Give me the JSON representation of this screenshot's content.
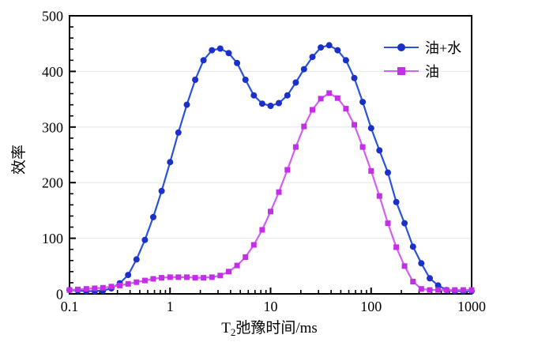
{
  "chart_data": {
    "type": "line",
    "xscale": "log",
    "xlabel": {
      "prefix": "T",
      "sub": "2",
      "rest": "弛豫时间/ms"
    },
    "ylabel": "效率",
    "xlim": [
      0.1,
      1000
    ],
    "ylim": [
      0,
      500
    ],
    "x_ticks": [
      {
        "value": 0.1,
        "label": "0.1"
      },
      {
        "value": 1,
        "label": "1"
      },
      {
        "value": 10,
        "label": "10"
      },
      {
        "value": 100,
        "label": "100"
      },
      {
        "value": 1000,
        "label": "1000"
      }
    ],
    "y_ticks": [
      {
        "value": 0,
        "label": "0"
      },
      {
        "value": 100,
        "label": "100"
      },
      {
        "value": 200,
        "label": "200"
      },
      {
        "value": 300,
        "label": "300"
      },
      {
        "value": 400,
        "label": "400"
      },
      {
        "value": 500,
        "label": "500"
      }
    ],
    "y_minor_step": 20,
    "grid": {
      "horizontal_at": [
        100,
        200,
        300,
        400
      ],
      "color": "#e9edf0"
    },
    "legend_position": "top-right-inside",
    "x": [
      0.1,
      0.121,
      0.147,
      0.178,
      0.215,
      0.261,
      0.316,
      0.383,
      0.464,
      0.562,
      0.681,
      0.825,
      1.0,
      1.21,
      1.47,
      1.78,
      2.15,
      2.61,
      3.16,
      3.83,
      4.64,
      5.62,
      6.81,
      8.25,
      10,
      12.1,
      14.7,
      17.8,
      21.5,
      26.1,
      31.6,
      38.3,
      46.4,
      56.2,
      68.1,
      82.5,
      100,
      121,
      147,
      178,
      215,
      261,
      316,
      383,
      464,
      562,
      681,
      825,
      1000
    ],
    "series": [
      {
        "name": "油+水",
        "key": "oil-water",
        "marker": "circle",
        "line_color": "#2a52dd",
        "marker_color": "#1b30c8",
        "values": [
          7,
          6,
          5,
          5,
          6,
          10,
          19,
          34,
          62,
          97,
          138,
          185,
          237,
          290,
          340,
          385,
          420,
          438,
          441,
          433,
          415,
          385,
          357,
          342,
          338,
          343,
          357,
          380,
          404,
          426,
          443,
          447,
          438,
          420,
          388,
          345,
          298,
          258,
          218,
          165,
          127,
          85,
          55,
          28,
          15,
          7,
          5,
          5,
          5
        ]
      },
      {
        "name": "油",
        "key": "oil",
        "marker": "square",
        "line_color": "#d45ef0",
        "marker_color": "#c32fe6",
        "values": [
          7,
          8,
          9,
          10,
          11,
          13,
          15,
          18,
          21,
          24,
          27,
          29,
          30,
          30,
          30,
          29,
          29,
          30,
          33,
          40,
          51,
          66,
          88,
          115,
          148,
          183,
          223,
          264,
          301,
          331,
          351,
          361,
          352,
          333,
          304,
          264,
          221,
          176,
          127,
          84,
          50,
          22,
          9,
          7,
          7,
          7,
          7,
          7,
          7
        ]
      }
    ]
  }
}
